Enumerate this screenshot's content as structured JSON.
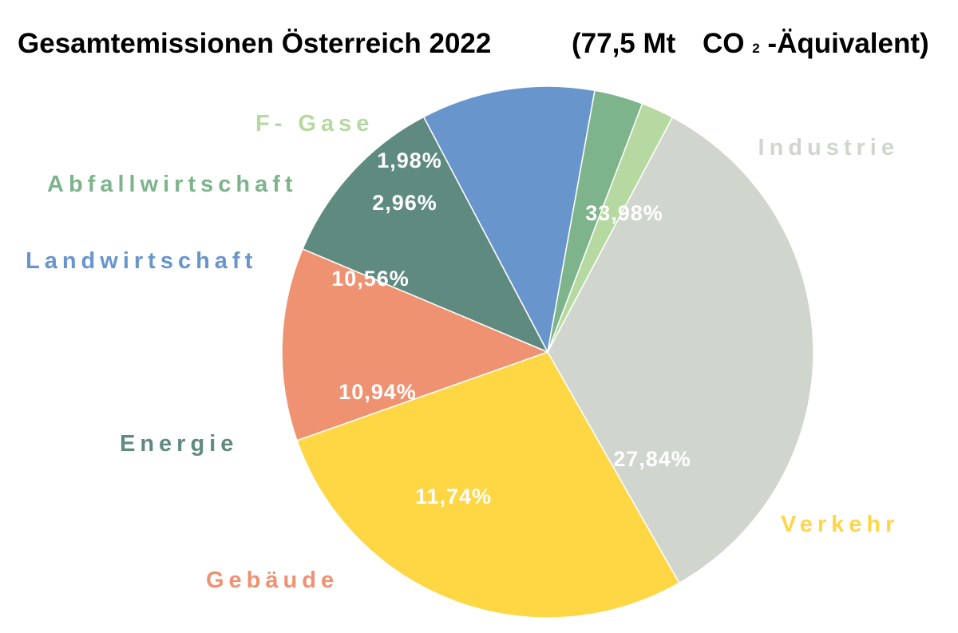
{
  "chart_data": {
    "type": "pie",
    "title_parts": {
      "main": "Gesamtemissionen Österreich 2022",
      "open": "(77,5 Mt",
      "co": "CO",
      "sub": "2",
      "rest": "-Äquivalent)"
    },
    "slices": [
      {
        "label": "Industrie",
        "value": 33.98,
        "value_label": "33,98%",
        "color": "#d0d5cd"
      },
      {
        "label": "Verkehr",
        "value": 27.84,
        "value_label": "27,84%",
        "color": "#ffd644"
      },
      {
        "label": "Gebäude",
        "value": 11.74,
        "value_label": "11,74%",
        "color": "#ef9272"
      },
      {
        "label": "Energie",
        "value": 10.94,
        "value_label": "10,94%",
        "color": "#5f8a80"
      },
      {
        "label": "Landwirtschaft",
        "value": 10.56,
        "value_label": "10,56%",
        "color": "#6896cc"
      },
      {
        "label": "Abfallwirtschaft",
        "value": 2.96,
        "value_label": "2,96%",
        "color": "#7db48c"
      },
      {
        "label": "F- Gase",
        "value": 1.98,
        "value_label": "1,98%",
        "color": "#b5d9a0"
      }
    ]
  }
}
